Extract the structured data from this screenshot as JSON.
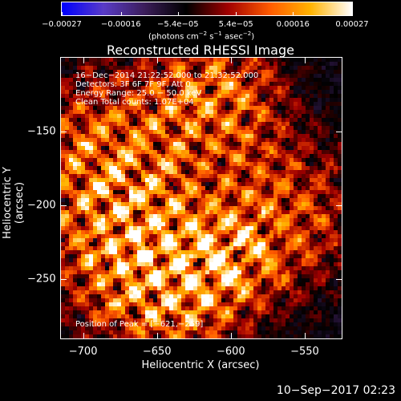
{
  "chart_data": {
    "type": "heatmap",
    "title": "Reconstructed RHESSI Image",
    "xlabel": "Heliocentric X (arcsec)",
    "ylabel": "Heliocentric Y (arcsec)",
    "xlim": [
      -715,
      -525
    ],
    "ylim": [
      -290,
      -100
    ],
    "x_ticks": [
      -700,
      -650,
      -600,
      -550
    ],
    "y_ticks": [
      -150,
      -200,
      -250
    ],
    "x_tick_labels": [
      "−700",
      "−650",
      "−600",
      "−550"
    ],
    "y_tick_labels": [
      "−150",
      "−200",
      "−250"
    ],
    "colorbar": {
      "range": [
        -0.00027,
        0.00027
      ],
      "tick_values": [
        -0.00027,
        -0.00016,
        -5.4e-05,
        5.4e-05,
        0.00016,
        0.00027
      ],
      "tick_labels": [
        "−0.00027",
        "−0.00016",
        "−5.4e−05",
        "5.4e−05",
        "0.00016",
        "0.00027"
      ],
      "units_prefix": "(photons cm",
      "units_exp1": "−2",
      "units_mid1": " s",
      "units_exp2": "−1",
      "units_mid2": " asec",
      "units_exp3": "−2",
      "units_suffix": ")",
      "colormap": [
        "#0000ff",
        "#5a3cc8",
        "#3c1e5a",
        "#000000",
        "#a00000",
        "#ff5a00",
        "#ffb400",
        "#ffffff"
      ]
    },
    "annotations": {
      "time_range": "16−Dec−2014 21:22:52.000 to 21:32:52.000",
      "detectors": "Detectors: 3F 6F 7F 9F, Att 0",
      "energy": "Energy Range: 25.0 − 50.0 keV",
      "clean": "Clean     Total counts: 1.07E+04",
      "peak": "Position of Peak = [−621,−259]"
    },
    "grid": false,
    "legend": "none"
  },
  "footer": {
    "timestamp": "10−Sep−2017 02:23"
  }
}
